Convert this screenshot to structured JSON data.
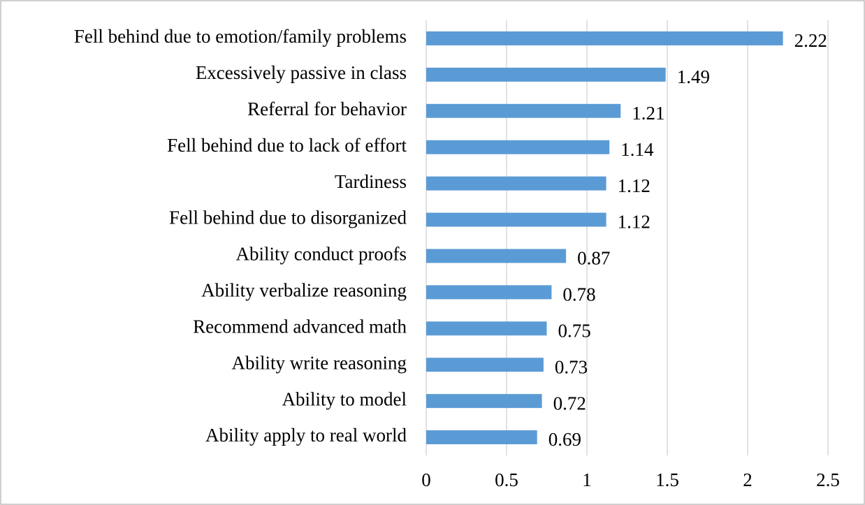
{
  "chart_data": {
    "type": "barh",
    "categories": [
      "Fell behind due to emotion/family problems",
      "Excessively passive in class",
      "Referral for behavior",
      "Fell behind due to lack of effort",
      "Tardiness",
      "Fell behind due to disorganized",
      "Ability conduct proofs",
      "Ability verbalize reasoning",
      "Recommend advanced math",
      "Ability write reasoning",
      "Ability to model",
      "Ability apply to real world"
    ],
    "values": [
      2.22,
      1.49,
      1.21,
      1.14,
      1.12,
      1.12,
      0.87,
      0.78,
      0.75,
      0.73,
      0.72,
      0.69
    ],
    "color": "#5b9bd5",
    "xlim": [
      0,
      2.5
    ],
    "xticks": [
      0,
      0.5,
      1,
      1.5,
      2,
      2.5
    ],
    "grid": true
  }
}
